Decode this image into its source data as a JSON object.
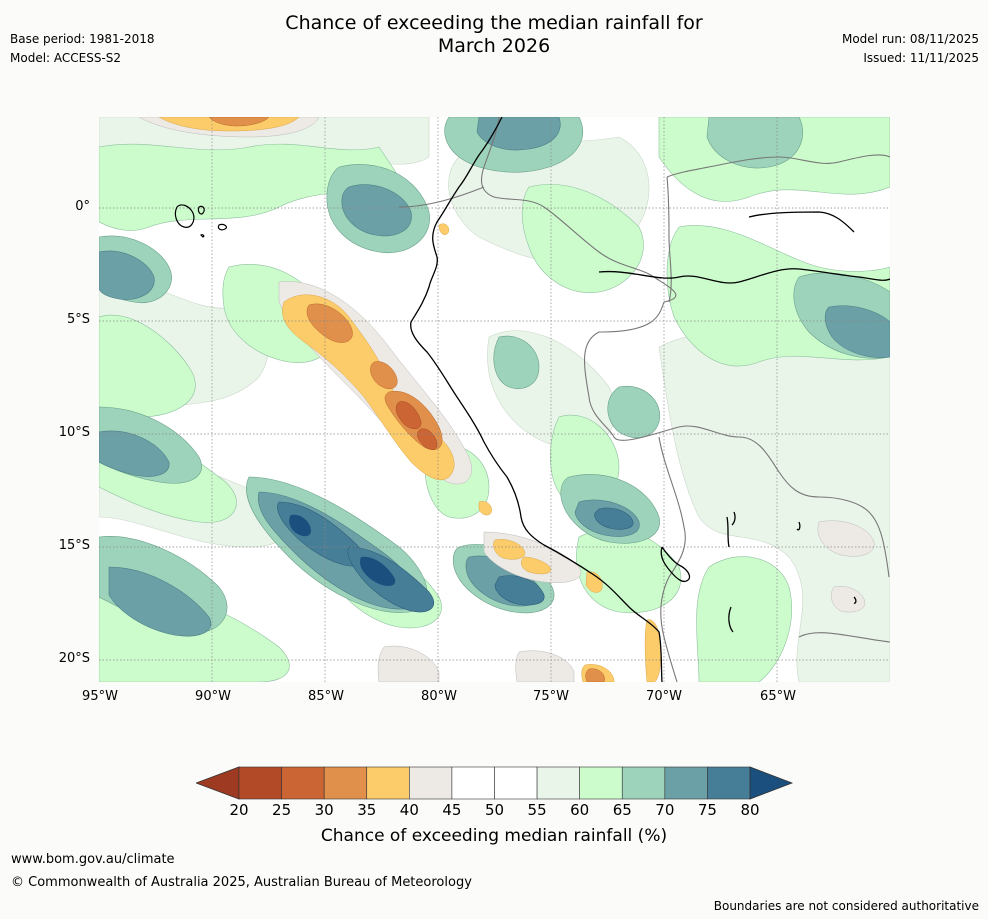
{
  "title_line1": "Chance of exceeding the median rainfall for",
  "title_line2": "March 2026",
  "base_period": "Base period: 1981-2018",
  "model": "Model: ACCESS-S2",
  "model_run": "Model run: 08/11/2025",
  "issued": "Issued: 11/11/2025",
  "map": {
    "lat_labels": [
      "0°",
      "5°S",
      "10°S",
      "15°S",
      "20°S"
    ],
    "lon_labels": [
      "95°W",
      "90°W",
      "85°W",
      "80°W",
      "75°W",
      "70°W",
      "65°W"
    ]
  },
  "colorbar": {
    "title": "Chance of exceeding median rainfall (%)",
    "ticks": [
      "20",
      "25",
      "30",
      "35",
      "40",
      "45",
      "50",
      "55",
      "60",
      "65",
      "70",
      "75",
      "80"
    ],
    "colors": [
      "#9e3a22",
      "#b24a28",
      "#cb6533",
      "#e0904a",
      "#fdcc6a",
      "#ede9e4",
      "#ffffff",
      "#ffffff",
      "#eaf5ea",
      "#ccfccc",
      "#9dd3bb",
      "#6aa0a6",
      "#467e98",
      "#1b4f7d"
    ]
  },
  "footer": {
    "url": "www.bom.gov.au/climate",
    "copyright": "© Commonwealth of Australia 2025, Australian Bureau of Meteorology",
    "note": "Boundaries are not considered authoritative"
  }
}
